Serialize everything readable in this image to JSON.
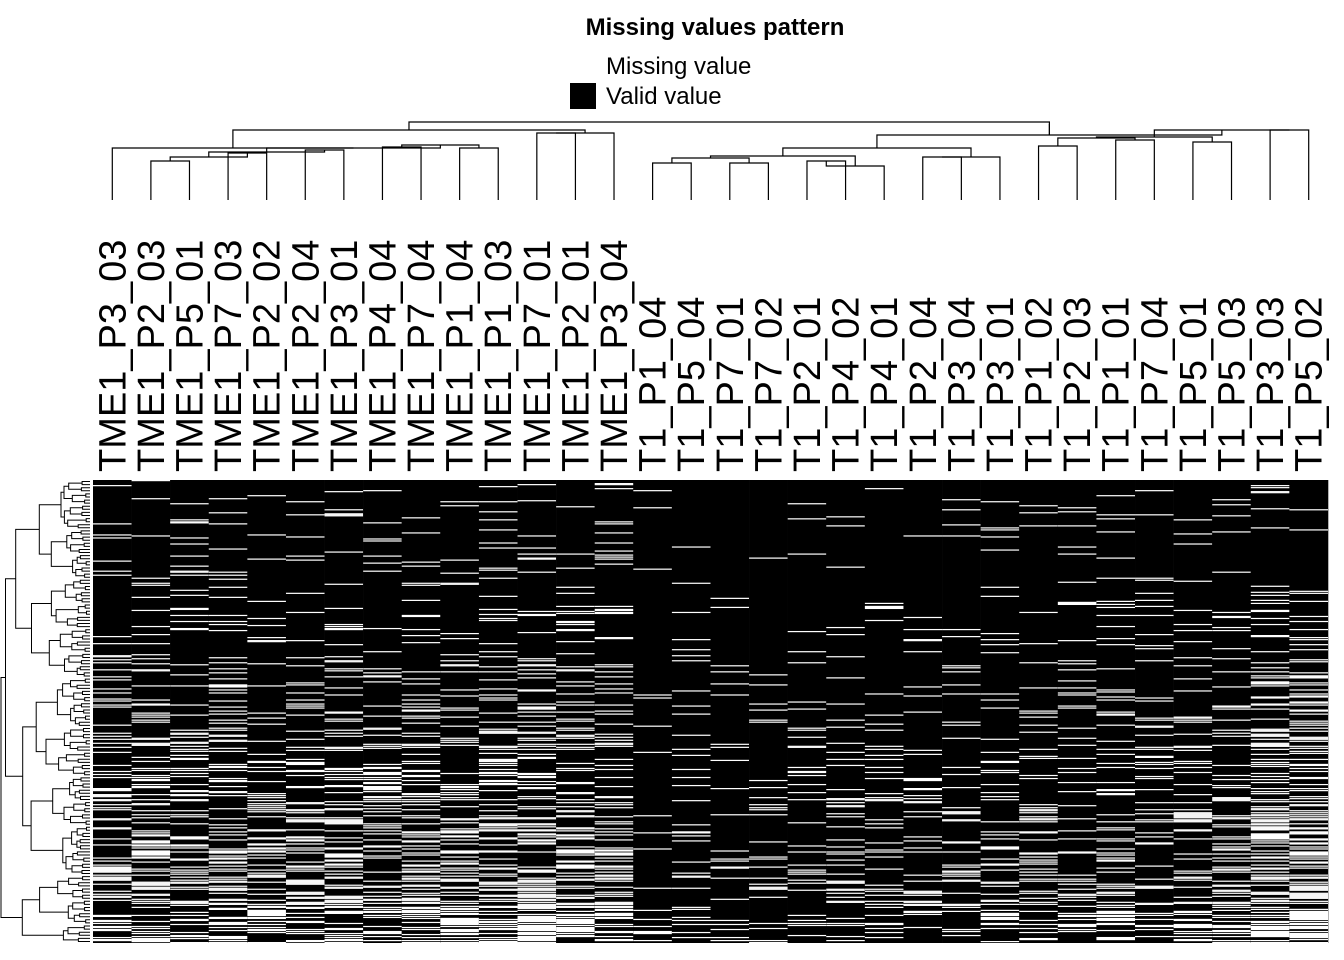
{
  "chart_data": {
    "type": "heatmap",
    "title": "Missing values pattern",
    "legend": {
      "placement": "top-center",
      "items": [
        {
          "label": "Missing value",
          "color": "#ffffff"
        },
        {
          "label": "Valid value",
          "color": "#000000"
        }
      ]
    },
    "columns": [
      "TME1_P3_03",
      "TME1_P2_03",
      "TME1_P5_01",
      "TME1_P7_03",
      "TME1_P2_02",
      "TME1_P2_04",
      "TME1_P3_01",
      "TME1_P4_04",
      "TME1_P7_04",
      "TME1_P1_04",
      "TME1_P1_03",
      "TME1_P7_01",
      "TME1_P2_01",
      "TME1_P3_04",
      "T1_P1_04",
      "T1_P5_04",
      "T1_P7_01",
      "T1_P7_02",
      "T1_P2_01",
      "T1_P4_02",
      "T1_P4_01",
      "T1_P2_04",
      "T1_P3_04",
      "T1_P3_01",
      "T1_P1_02",
      "T1_P2_03",
      "T1_P1_01",
      "T1_P7_04",
      "T1_P5_01",
      "T1_P5_03",
      "T1_P3_03",
      "T1_P5_02"
    ],
    "values": {
      "valid": 1,
      "missing": 0,
      "missing_fraction_by_column": [
        0.2,
        0.24,
        0.22,
        0.24,
        0.2,
        0.22,
        0.24,
        0.2,
        0.26,
        0.24,
        0.26,
        0.3,
        0.26,
        0.3,
        0.06,
        0.08,
        0.08,
        0.08,
        0.08,
        0.1,
        0.1,
        0.12,
        0.12,
        0.14,
        0.14,
        0.16,
        0.18,
        0.18,
        0.2,
        0.24,
        0.3,
        0.34
      ]
    },
    "column_dendrogram": true,
    "row_dendrogram": true,
    "colors": {
      "valid": "#000000",
      "missing": "#ffffff"
    }
  }
}
